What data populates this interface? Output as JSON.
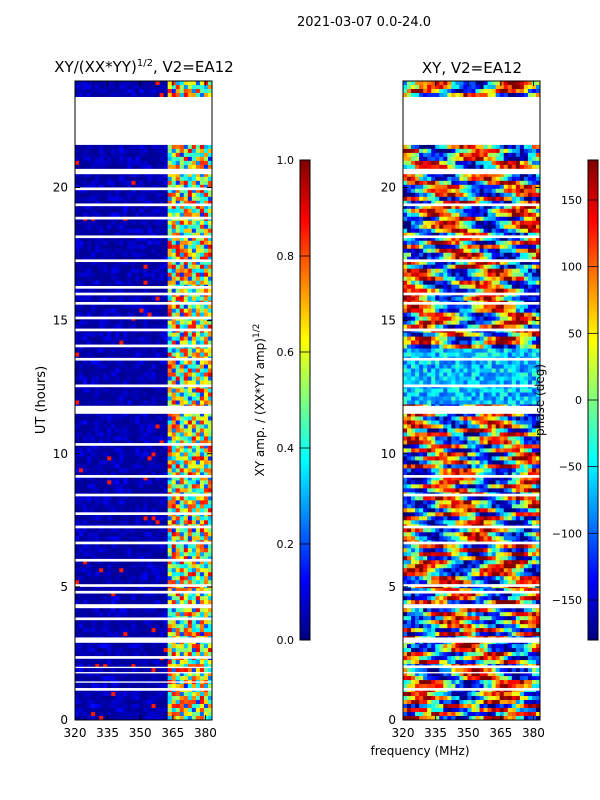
{
  "figure": {
    "suptitle": "2021-03-07 0.0-24.0",
    "xlabel": "frequency (MHz)"
  },
  "colors": {
    "jet": [
      "#00007f",
      "#0000ff",
      "#007fff",
      "#00ffff",
      "#7fff7f",
      "#ffff00",
      "#ff7f00",
      "#ff0000",
      "#7f0000"
    ]
  },
  "chart_data": [
    {
      "type": "heatmap",
      "title_main": "XY/(XX*YY)",
      "title_sup": "1/2",
      "title_rest": ", V2=EA12",
      "ylabel": "UT (hours)",
      "xlim": [
        320,
        383
      ],
      "ylim": [
        0,
        24
      ],
      "xticks": [
        320,
        335,
        350,
        365,
        380
      ],
      "yticks": [
        0,
        5,
        10,
        15,
        20
      ],
      "colormap": "jet",
      "variable": "XY amplitude normalized",
      "data_gaps_hours": [
        [
          1.1,
          1.2
        ],
        [
          1.4,
          1.45
        ],
        [
          1.75,
          1.8
        ],
        [
          1.95,
          2.0
        ],
        [
          2.3,
          2.4
        ],
        [
          2.9,
          3.1
        ],
        [
          3.75,
          3.85
        ],
        [
          4.2,
          4.35
        ],
        [
          4.75,
          4.85
        ],
        [
          5.0,
          5.1
        ],
        [
          5.95,
          6.05
        ],
        [
          6.6,
          6.7
        ],
        [
          7.2,
          7.3
        ],
        [
          7.7,
          7.8
        ],
        [
          8.4,
          8.5
        ],
        [
          9.1,
          9.2
        ],
        [
          10.3,
          10.4
        ],
        [
          11.5,
          11.8
        ],
        [
          12.5,
          12.6
        ],
        [
          13.5,
          13.6
        ],
        [
          14.0,
          14.1
        ],
        [
          14.6,
          14.7
        ],
        [
          15.05,
          15.15
        ],
        [
          15.6,
          15.7
        ],
        [
          15.95,
          16.05
        ],
        [
          16.2,
          16.3
        ],
        [
          17.2,
          17.3
        ],
        [
          18.1,
          18.2
        ],
        [
          18.8,
          18.9
        ],
        [
          19.3,
          19.4
        ],
        [
          19.9,
          20.0
        ],
        [
          20.5,
          20.7
        ],
        [
          21.6,
          23.4
        ]
      ]
    },
    {
      "type": "heatmap",
      "title": "XY, V2=EA12",
      "xlim": [
        320,
        383
      ],
      "ylim": [
        0,
        24
      ],
      "xticks": [
        320,
        335,
        350,
        365,
        380
      ],
      "yticks": [
        0,
        5,
        10,
        15,
        20
      ],
      "colormap": "jet",
      "variable": "XY phase",
      "data_gaps_hours": [
        [
          1.1,
          1.2
        ],
        [
          1.75,
          1.8
        ],
        [
          1.95,
          2.05
        ],
        [
          2.9,
          3.1
        ],
        [
          4.2,
          4.35
        ],
        [
          4.75,
          4.85
        ],
        [
          5.0,
          5.1
        ],
        [
          6.6,
          6.7
        ],
        [
          7.2,
          7.3
        ],
        [
          8.4,
          8.5
        ],
        [
          9.1,
          9.2
        ],
        [
          11.5,
          11.8
        ],
        [
          12.5,
          12.6
        ],
        [
          13.5,
          13.6
        ],
        [
          14.6,
          14.7
        ],
        [
          15.6,
          15.7
        ],
        [
          15.95,
          16.05
        ],
        [
          17.2,
          17.3
        ],
        [
          18.1,
          18.2
        ],
        [
          19.3,
          19.4
        ],
        [
          20.5,
          20.7
        ],
        [
          21.6,
          23.4
        ]
      ]
    },
    {
      "type": "colorbar",
      "label_main": "XY amp. / (XX*YY amp)",
      "label_sup": "1/2",
      "range": [
        0.0,
        1.0
      ],
      "ticks": [
        "0.0",
        "0.2",
        "0.4",
        "0.6",
        "0.8",
        "1.0"
      ],
      "tick_values": [
        0.0,
        0.2,
        0.4,
        0.6,
        0.8,
        1.0
      ]
    },
    {
      "type": "colorbar",
      "label": "phase (deg)",
      "range": [
        -180,
        180
      ],
      "ticks": [
        "−150",
        "−100",
        "−50",
        "0",
        "50",
        "100",
        "150"
      ],
      "tick_values": [
        -150,
        -100,
        -50,
        0,
        50,
        100,
        150
      ]
    }
  ]
}
